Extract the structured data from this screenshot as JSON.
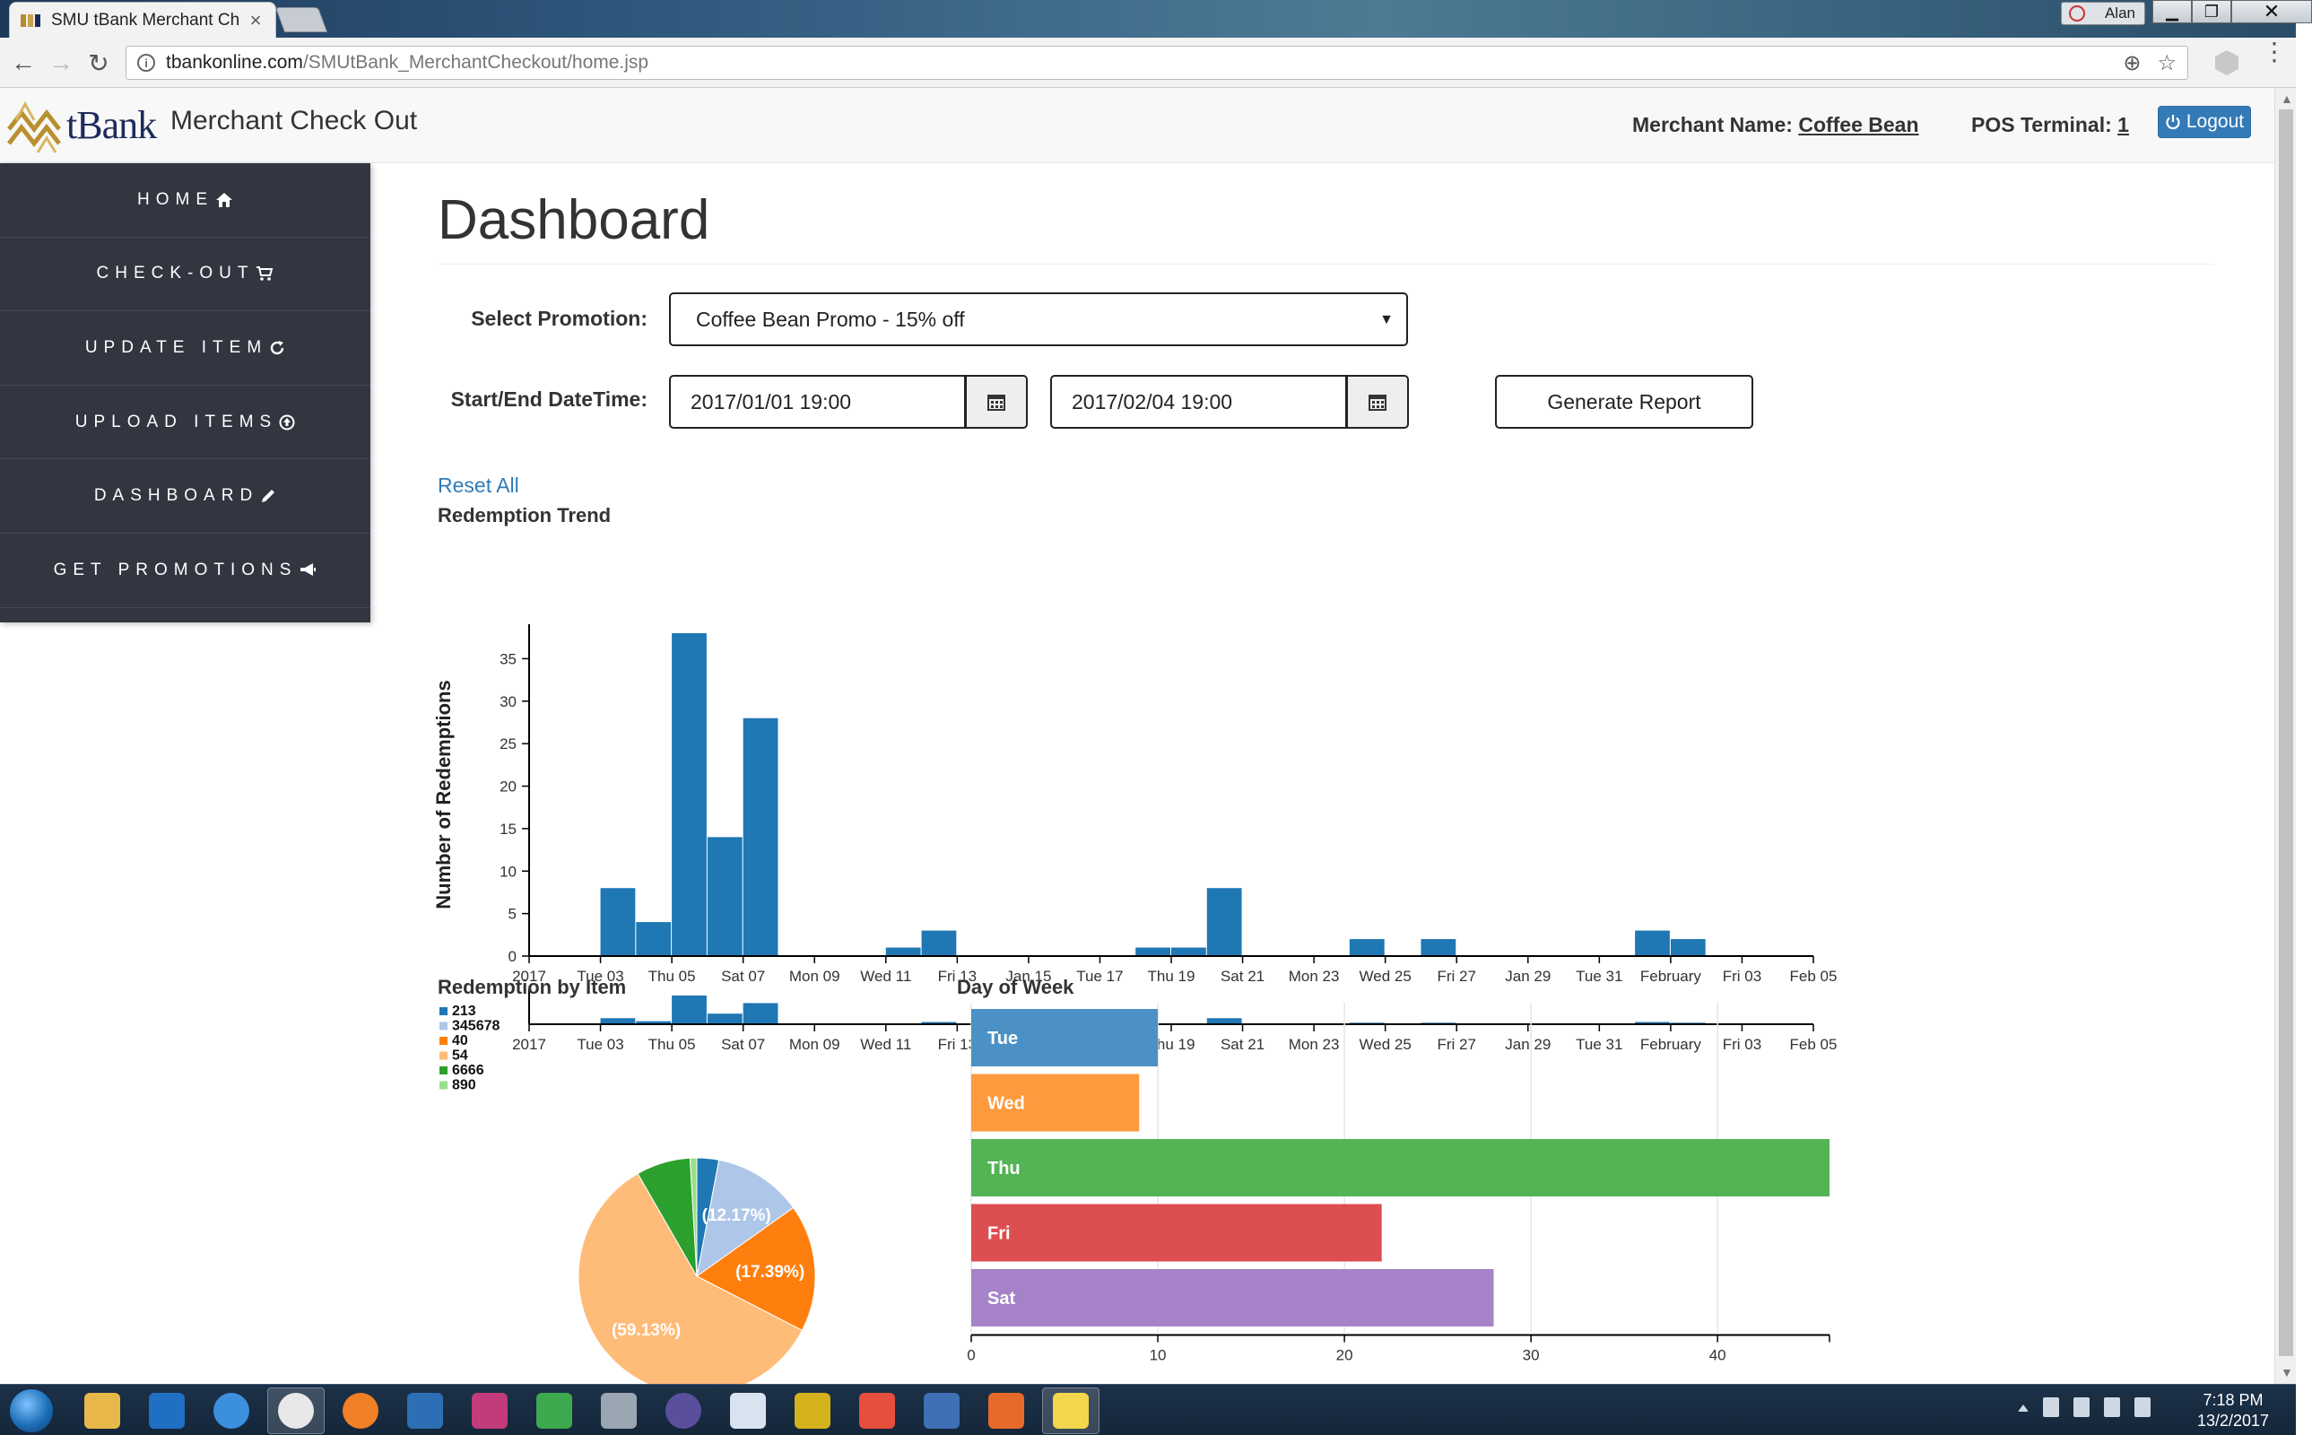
{
  "browser": {
    "tab_title": "SMU tBank Merchant Ch",
    "user_name": "Alan",
    "url_host": "tbankonline.com",
    "url_path": "/SMUtBank_MerchantCheckout/home.jsp",
    "minimize": "▁",
    "restore": "❐",
    "close": "✕",
    "tab_close": "×",
    "back": "←",
    "forward": "→",
    "reload": "↻",
    "zoom_icon": "⊕",
    "star_icon": "☆",
    "menu": "⋮"
  },
  "header": {
    "logo_text": "tBank",
    "brand_title": "Merchant Check Out",
    "merchant_label": "Merchant Name:",
    "merchant_name": "Coffee Bean",
    "pos_label": "POS Terminal:",
    "pos_value": "1",
    "logout_label": "Logout"
  },
  "sidebar": {
    "items": [
      {
        "label": "HOME",
        "icon": "home-icon"
      },
      {
        "label": "CHECK-OUT",
        "icon": "cart-icon"
      },
      {
        "label": "UPDATE ITEM",
        "icon": "refresh-icon"
      },
      {
        "label": "UPLOAD ITEMS",
        "icon": "upload-icon"
      },
      {
        "label": "DASHBOARD",
        "icon": "pencil-icon"
      },
      {
        "label": "GET PROMOTIONS",
        "icon": "megaphone-icon"
      }
    ]
  },
  "main": {
    "title": "Dashboard",
    "promotion_label": "Select Promotion:",
    "promotion_value": "Coffee Bean Promo - 15% off",
    "date_label": "Start/End DateTime:",
    "start_date": "2017/01/01 19:00",
    "end_date": "2017/02/04 19:00",
    "generate_label": "Generate Report",
    "reset_label": "Reset All",
    "trend_title": "Redemption Trend",
    "item_title": "Redemption by Item",
    "dow_title": "Day of Week"
  },
  "chart_data": [
    {
      "type": "bar",
      "title": "Redemption Trend",
      "ylabel": "Number of Redemptions",
      "ylim": [
        0,
        38
      ],
      "yticks": [
        0,
        5,
        10,
        15,
        20,
        25,
        30,
        35
      ],
      "x_tick_labels": [
        "2017",
        "Tue 03",
        "Thu 05",
        "Sat 07",
        "Mon 09",
        "Wed 11",
        "Fri 13",
        "Jan 15",
        "Tue 17",
        "Thu 19",
        "Sat 21",
        "Mon 23",
        "Wed 25",
        "Fri 27",
        "Jan 29",
        "Tue 31",
        "February",
        "Fri 03",
        "Feb 05"
      ],
      "x_domain": [
        "2017-01-01",
        "2017-02-06"
      ],
      "x": [
        "2017-01-03",
        "2017-01-04",
        "2017-01-05",
        "2017-01-06",
        "2017-01-07",
        "2017-01-11",
        "2017-01-12",
        "2017-01-18",
        "2017-01-19",
        "2017-01-20",
        "2017-01-24",
        "2017-01-26",
        "2017-02-01",
        "2017-02-02"
      ],
      "values": [
        8,
        4,
        38,
        14,
        28,
        1,
        3,
        1,
        1,
        8,
        2,
        2,
        3,
        2
      ],
      "color": "#1f77b4"
    },
    {
      "type": "pie",
      "title": "Redemption by Item",
      "legend": [
        "213",
        "345678",
        "40",
        "54",
        "6666",
        "890"
      ],
      "values": [
        3.0,
        12.17,
        17.39,
        59.13,
        7.4,
        0.91
      ],
      "labels": [
        "",
        "(12.17%)",
        "(17.39%)",
        "(59.13%)",
        "",
        ""
      ],
      "colors": [
        "#1f77b4",
        "#aec7e8",
        "#ff7f0e",
        "#ffbb78",
        "#2ca02c",
        "#98df8a"
      ]
    },
    {
      "type": "bar",
      "orientation": "horizontal",
      "title": "Day of Week",
      "categories": [
        "Tue",
        "Wed",
        "Thu",
        "Fri",
        "Sat"
      ],
      "values": [
        10,
        9,
        46,
        22,
        28
      ],
      "xlim": [
        0,
        46
      ],
      "xticks": [
        0,
        10,
        20,
        30,
        40
      ],
      "colors": [
        "#4b91c6",
        "#fd9a3d",
        "#54b354",
        "#dc4e4f",
        "#a683c9"
      ]
    }
  ],
  "taskbar": {
    "time": "7:18 PM",
    "date": "13/2/2017",
    "icons": [
      "explorer-icon",
      "outlook-icon",
      "ie-icon",
      "chrome-icon",
      "firefox-icon",
      "vscode-icon",
      "mysql-icon",
      "sourcetree-icon",
      "settings-icon",
      "eclipse-icon",
      "box-icon",
      "lock-icon",
      "apps-icon",
      "sas-icon",
      "browser-icon",
      "sticky-notes-icon"
    ],
    "icon_colors": [
      "#e8b84a",
      "#1f6fc4",
      "#3c8fdd",
      "#e8e8e8",
      "#f07f26",
      "#2c6fb5",
      "#c23b7a",
      "#3ea84e",
      "#9aa6b2",
      "#5a4f9c",
      "#d9e3ef",
      "#d4b21b",
      "#e64f3c",
      "#3f6fb4",
      "#e86a2a",
      "#f2d64b"
    ]
  }
}
